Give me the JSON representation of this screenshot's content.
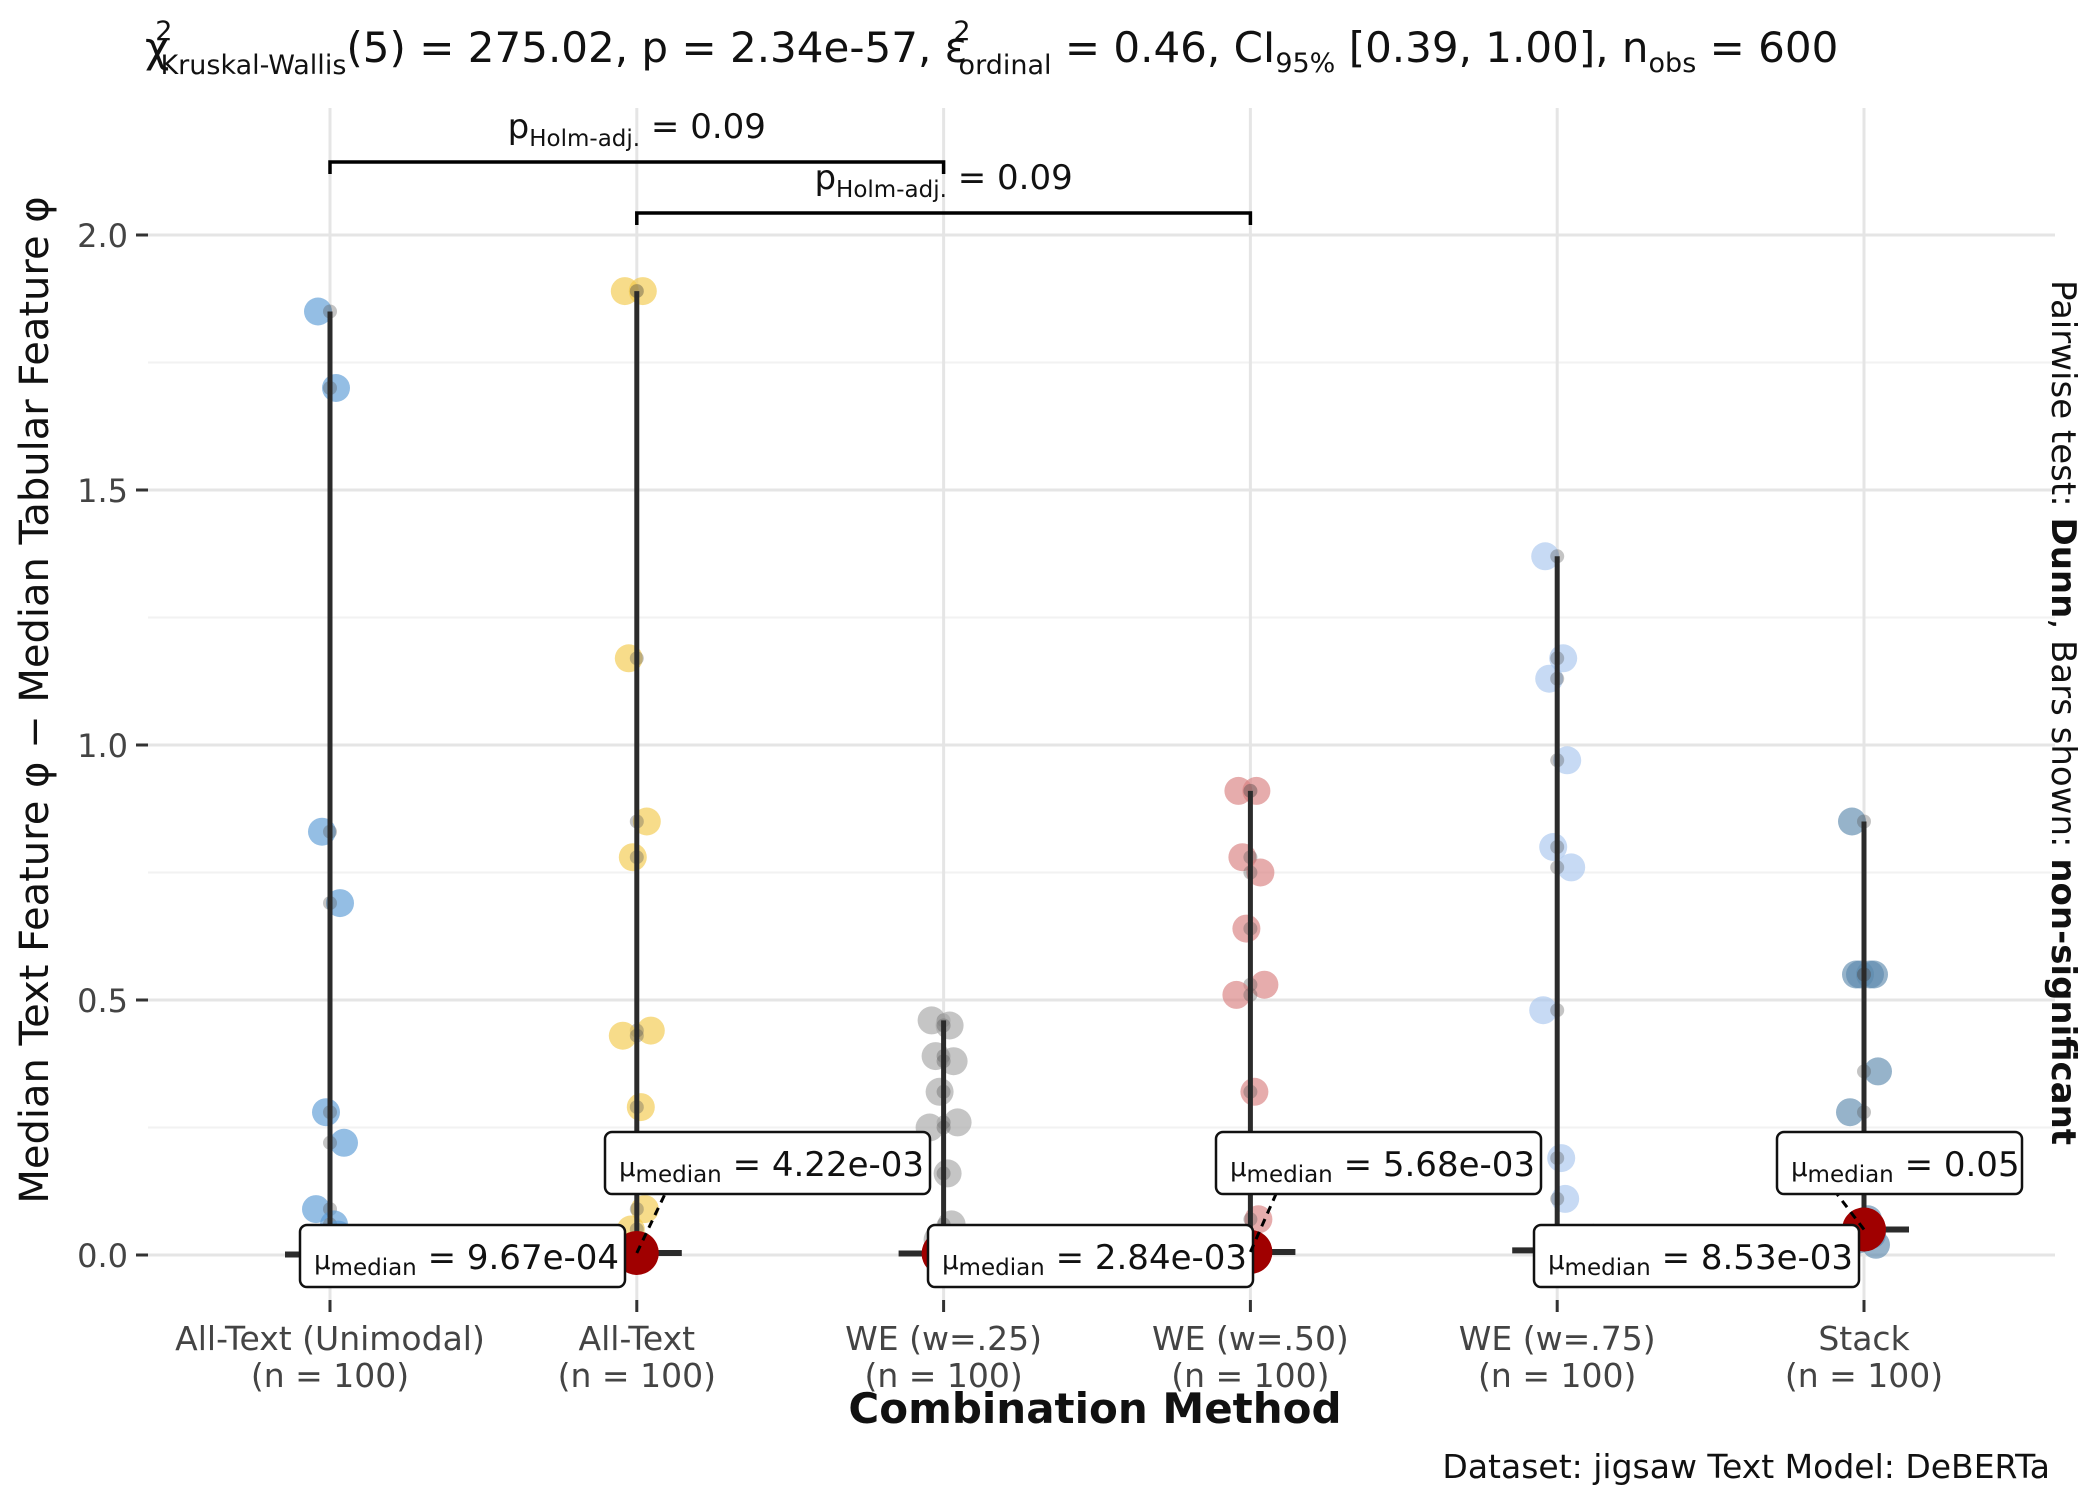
{
  "title": {
    "chi_base": "χ",
    "chi_sup": "2",
    "kw_sub": "Kruskal-Wallis",
    "stat_part": "(5) = 275.02, p = 2.34e-57, ",
    "eps_base": "ε",
    "eps_sup": "2",
    "eps_sub": "ordinal",
    "ci_pre": " = 0.46, CI",
    "ci_sub": "95%",
    "ci_vals": " [0.39, 1.00], n",
    "nobs_sub": "obs",
    "nobs_val": " = 600"
  },
  "right_label": {
    "prefix": "Pairwise test: ",
    "test": "Dunn",
    "middle": ", Bars shown: ",
    "shown": "non-significant"
  },
  "caption": "Dataset:  jigsaw Text Model:  DeBERTa",
  "chart_data": {
    "type": "scatter",
    "xlabel": "Combination Method",
    "ylabel": "Median Text Feature φ − Median Tabular Feature φ",
    "ylim": [
      -0.08,
      2.27
    ],
    "yticks": [
      0.0,
      0.5,
      1.0,
      1.5,
      2.0
    ],
    "ytick_labels": [
      "0.0",
      "0.5",
      "1.0",
      "1.5",
      "2.0"
    ],
    "grid": true,
    "categories": [
      {
        "name": "All-Text (Unimodal)",
        "n": "(n = 100)",
        "color": "#5B9BD5",
        "median": 0.001,
        "max": 1.85,
        "points": [
          1.85,
          1.7,
          0.83,
          0.69,
          0.28,
          0.22,
          0.09,
          0.06,
          0.04,
          0.02,
          0.01
        ],
        "label": {
          "sub": "median",
          "val": " = 9.67e-04"
        }
      },
      {
        "name": "All-Text",
        "n": "(n = 100)",
        "color": "#F2C94C",
        "median": 0.004,
        "max": 1.89,
        "points": [
          1.89,
          1.89,
          1.17,
          0.85,
          0.78,
          0.44,
          0.43,
          0.29,
          0.09,
          0.05
        ],
        "label": {
          "sub": "median",
          "val": " = 4.22e-03"
        }
      },
      {
        "name": "WE (w=.25)",
        "n": "(n = 100)",
        "color": "#A6A6A6",
        "median": 0.003,
        "max": 0.46,
        "points": [
          0.46,
          0.45,
          0.39,
          0.38,
          0.32,
          0.26,
          0.25,
          0.16,
          0.06,
          0.03
        ],
        "label": {
          "sub": "median",
          "val": " = 2.84e-03"
        }
      },
      {
        "name": "WE (w=.50)",
        "n": "(n = 100)",
        "color": "#D98080",
        "median": 0.006,
        "max": 0.91,
        "points": [
          0.91,
          0.91,
          0.78,
          0.75,
          0.64,
          0.53,
          0.51,
          0.32,
          0.07
        ],
        "label": {
          "sub": "median",
          "val": " = 5.68e-03"
        }
      },
      {
        "name": "WE (w=.75)",
        "n": "(n = 100)",
        "color": "#A9C6EE",
        "median": 0.009,
        "max": 1.37,
        "points": [
          1.37,
          1.17,
          1.13,
          0.97,
          0.8,
          0.76,
          0.48,
          0.19,
          0.11,
          0.03
        ],
        "label": {
          "sub": "median",
          "val": " = 8.53e-03"
        }
      },
      {
        "name": "Stack",
        "n": "(n = 100)",
        "color": "#5E8AAE",
        "median": 0.05,
        "max": 0.85,
        "points": [
          0.85,
          0.55,
          0.55,
          0.55,
          0.55,
          0.36,
          0.28,
          0.07,
          0.04,
          0.03,
          0.02
        ],
        "label": {
          "sub": "median",
          "val": " = 0.05"
        }
      }
    ],
    "comparisons": [
      {
        "from": 0,
        "to": 2,
        "label": {
          "sub": "Holm-adj.",
          "val": " = 0.09"
        }
      },
      {
        "from": 1,
        "to": 3,
        "label": {
          "sub": "Holm-adj.",
          "val": " = 0.09"
        }
      }
    ],
    "median_color": "#A00000"
  }
}
